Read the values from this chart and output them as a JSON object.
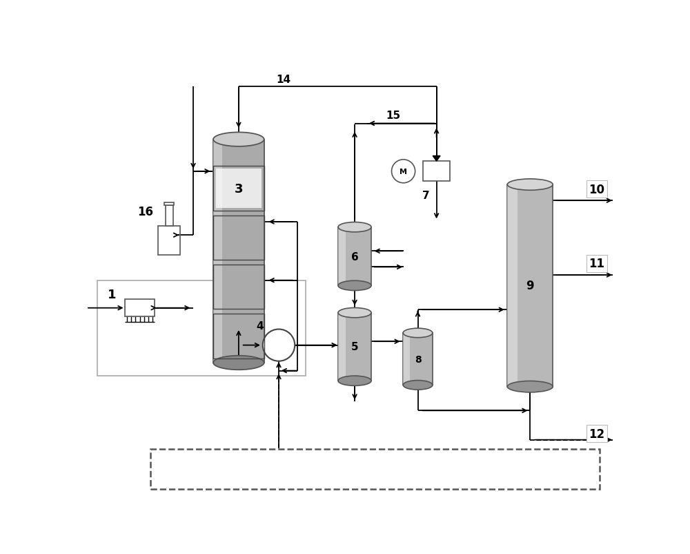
{
  "bg_color": "#ffffff",
  "lc": "#000000",
  "gray_dark": "#888888",
  "gray_mid": "#aaaaaa",
  "gray_light": "#cccccc",
  "gray_lighter": "#dddddd",
  "gray_body": "#b0b0b0",
  "lw": 1.3
}
